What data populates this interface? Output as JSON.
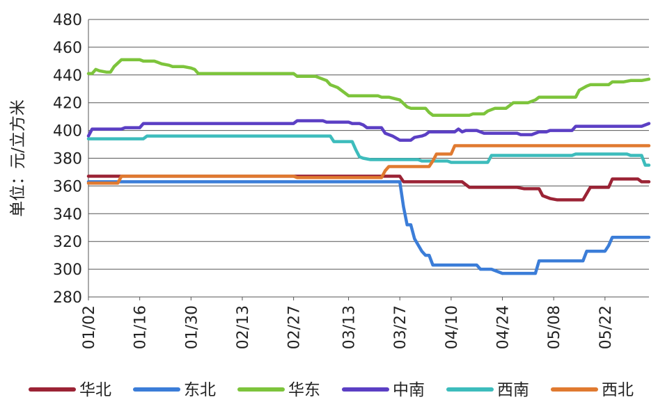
{
  "chart_data": {
    "type": "line",
    "ylabel": "单位：元/立方米",
    "ylim": [
      280,
      480
    ],
    "yticks": [
      280,
      300,
      320,
      340,
      360,
      380,
      400,
      420,
      440,
      460,
      480
    ],
    "xlim": [
      "01/02",
      "06/03"
    ],
    "xticks": [
      "01/02",
      "01/16",
      "01/30",
      "02/13",
      "02/27",
      "03/13",
      "03/27",
      "04/10",
      "04/24",
      "05/08",
      "05/22"
    ],
    "grid": "horizontal",
    "legend_position": "bottom",
    "series": [
      {
        "name": "华北",
        "color": "#9b2335",
        "points": [
          [
            "01/02",
            367
          ],
          [
            "03/27",
            367
          ],
          [
            "03/28",
            363
          ],
          [
            "04/13",
            363
          ],
          [
            "04/15",
            359
          ],
          [
            "04/28",
            359
          ],
          [
            "04/30",
            358
          ],
          [
            "05/04",
            358
          ],
          [
            "05/05",
            353
          ],
          [
            "05/07",
            351
          ],
          [
            "05/09",
            350
          ],
          [
            "05/16",
            350
          ],
          [
            "05/18",
            359
          ],
          [
            "05/23",
            359
          ],
          [
            "05/24",
            365
          ],
          [
            "05/31",
            365
          ],
          [
            "06/01",
            363
          ],
          [
            "06/03",
            363
          ]
        ]
      },
      {
        "name": "东北",
        "color": "#3b7dd8",
        "points": [
          [
            "01/02",
            363
          ],
          [
            "03/27",
            363
          ],
          [
            "03/28",
            345
          ],
          [
            "03/29",
            332
          ],
          [
            "03/30",
            332
          ],
          [
            "03/31",
            322
          ],
          [
            "04/02",
            313
          ],
          [
            "04/03",
            310
          ],
          [
            "04/04",
            310
          ],
          [
            "04/05",
            303
          ],
          [
            "04/17",
            303
          ],
          [
            "04/18",
            300
          ],
          [
            "04/21",
            300
          ],
          [
            "04/24",
            297
          ],
          [
            "05/03",
            297
          ],
          [
            "05/04",
            306
          ],
          [
            "05/16",
            306
          ],
          [
            "05/17",
            313
          ],
          [
            "05/22",
            313
          ],
          [
            "05/23",
            317
          ],
          [
            "05/24",
            323
          ],
          [
            "06/03",
            323
          ]
        ]
      },
      {
        "name": "华东",
        "color": "#7dc43c",
        "points": [
          [
            "01/02",
            441
          ],
          [
            "01/03",
            441
          ],
          [
            "01/04",
            444
          ],
          [
            "01/05",
            443
          ],
          [
            "01/07",
            442
          ],
          [
            "01/08",
            442
          ],
          [
            "01/09",
            446
          ],
          [
            "01/11",
            451
          ],
          [
            "01/16",
            451
          ],
          [
            "01/17",
            450
          ],
          [
            "01/20",
            450
          ],
          [
            "01/21",
            449
          ],
          [
            "01/22",
            448
          ],
          [
            "01/24",
            447
          ],
          [
            "01/25",
            446
          ],
          [
            "01/28",
            446
          ],
          [
            "01/30",
            445
          ],
          [
            "01/31",
            444
          ],
          [
            "02/01",
            441
          ],
          [
            "02/27",
            441
          ],
          [
            "02/28",
            439
          ],
          [
            "03/04",
            439
          ],
          [
            "03/05",
            438
          ],
          [
            "03/07",
            436
          ],
          [
            "03/08",
            433
          ],
          [
            "03/10",
            431
          ],
          [
            "03/12",
            427
          ],
          [
            "03/13",
            425
          ],
          [
            "03/21",
            425
          ],
          [
            "03/22",
            424
          ],
          [
            "03/24",
            424
          ],
          [
            "03/27",
            422
          ],
          [
            "03/29",
            417
          ],
          [
            "03/30",
            416
          ],
          [
            "04/03",
            416
          ],
          [
            "04/04",
            413
          ],
          [
            "04/05",
            411
          ],
          [
            "04/15",
            411
          ],
          [
            "04/16",
            412
          ],
          [
            "04/19",
            412
          ],
          [
            "04/20",
            414
          ],
          [
            "04/22",
            416
          ],
          [
            "04/25",
            416
          ],
          [
            "04/26",
            418
          ],
          [
            "04/27",
            420
          ],
          [
            "05/01",
            420
          ],
          [
            "05/03",
            422
          ],
          [
            "05/04",
            424
          ],
          [
            "05/14",
            424
          ],
          [
            "05/15",
            429
          ],
          [
            "05/17",
            432
          ],
          [
            "05/18",
            433
          ],
          [
            "05/23",
            433
          ],
          [
            "05/24",
            435
          ],
          [
            "05/27",
            435
          ],
          [
            "05/29",
            436
          ],
          [
            "06/01",
            436
          ],
          [
            "06/03",
            437
          ]
        ]
      },
      {
        "name": "中南",
        "color": "#5b3fc4",
        "points": [
          [
            "01/02",
            396
          ],
          [
            "01/03",
            401
          ],
          [
            "01/11",
            401
          ],
          [
            "01/12",
            402
          ],
          [
            "01/16",
            402
          ],
          [
            "01/17",
            405
          ],
          [
            "02/27",
            405
          ],
          [
            "02/28",
            407
          ],
          [
            "03/06",
            407
          ],
          [
            "03/07",
            406
          ],
          [
            "03/13",
            406
          ],
          [
            "03/14",
            405
          ],
          [
            "03/16",
            405
          ],
          [
            "03/17",
            404
          ],
          [
            "03/18",
            402
          ],
          [
            "03/22",
            402
          ],
          [
            "03/23",
            398
          ],
          [
            "03/25",
            396
          ],
          [
            "03/27",
            393
          ],
          [
            "03/30",
            393
          ],
          [
            "03/31",
            395
          ],
          [
            "04/02",
            396
          ],
          [
            "04/03",
            397
          ],
          [
            "04/04",
            399
          ],
          [
            "04/11",
            399
          ],
          [
            "04/12",
            401
          ],
          [
            "04/13",
            399
          ],
          [
            "04/14",
            400
          ],
          [
            "04/17",
            400
          ],
          [
            "04/19",
            398
          ],
          [
            "04/28",
            398
          ],
          [
            "04/29",
            397
          ],
          [
            "05/02",
            397
          ],
          [
            "05/04",
            399
          ],
          [
            "05/06",
            399
          ],
          [
            "05/07",
            400
          ],
          [
            "05/13",
            400
          ],
          [
            "05/14",
            403
          ],
          [
            "06/01",
            403
          ],
          [
            "06/03",
            405
          ]
        ]
      },
      {
        "name": "西南",
        "color": "#3dbcbc",
        "points": [
          [
            "01/02",
            394
          ],
          [
            "01/17",
            394
          ],
          [
            "01/18",
            396
          ],
          [
            "03/08",
            396
          ],
          [
            "03/09",
            392
          ],
          [
            "03/14",
            392
          ],
          [
            "03/15",
            386
          ],
          [
            "03/16",
            381
          ],
          [
            "03/17",
            380
          ],
          [
            "03/19",
            379
          ],
          [
            "04/01",
            379
          ],
          [
            "04/02",
            378
          ],
          [
            "04/09",
            378
          ],
          [
            "04/10",
            377
          ],
          [
            "04/20",
            377
          ],
          [
            "04/21",
            382
          ],
          [
            "05/13",
            382
          ],
          [
            "05/14",
            383
          ],
          [
            "05/28",
            383
          ],
          [
            "05/29",
            382
          ],
          [
            "06/01",
            382
          ],
          [
            "06/02",
            375
          ],
          [
            "06/03",
            375
          ]
        ]
      },
      {
        "name": "西北",
        "color": "#e07a30",
        "points": [
          [
            "01/02",
            362
          ],
          [
            "01/10",
            362
          ],
          [
            "01/11",
            367
          ],
          [
            "02/27",
            367
          ],
          [
            "02/28",
            366
          ],
          [
            "03/22",
            366
          ],
          [
            "03/23",
            371
          ],
          [
            "03/24",
            374
          ],
          [
            "04/04",
            374
          ],
          [
            "04/05",
            378
          ],
          [
            "04/06",
            383
          ],
          [
            "04/10",
            383
          ],
          [
            "04/11",
            389
          ],
          [
            "06/03",
            389
          ]
        ]
      }
    ]
  }
}
